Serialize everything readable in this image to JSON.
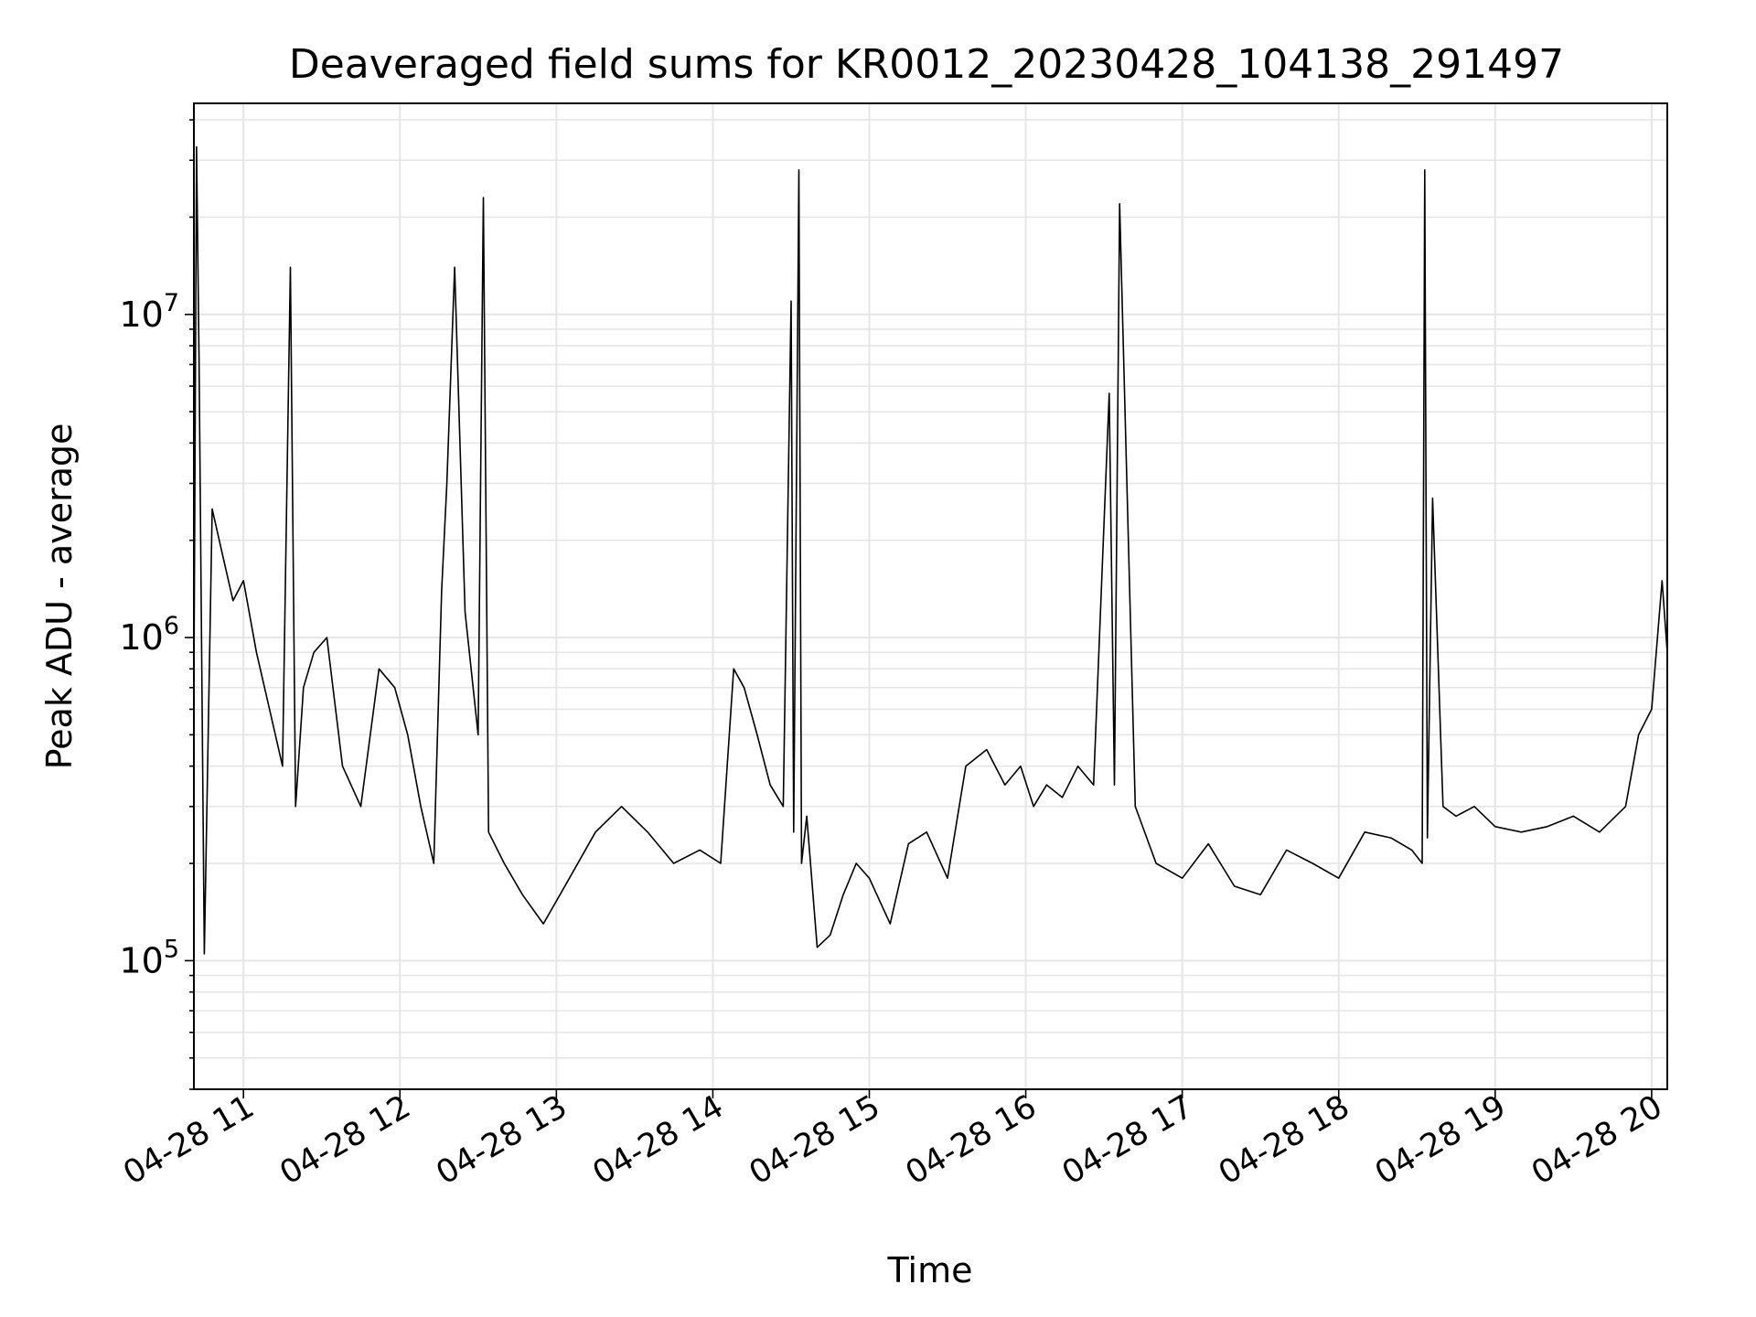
{
  "chart_data": {
    "type": "line",
    "title": "Deaveraged field sums for KR0012_20230428_104138_291497",
    "xlabel": "Time",
    "ylabel": "Peak ADU - average",
    "yscale": "log",
    "ylim": [
      40000,
      45000000
    ],
    "xlim": [
      "2023-04-28 10:41",
      "2023-04-28 20:06"
    ],
    "x_ticks": [
      "04-28 11",
      "04-28 12",
      "04-28 13",
      "04-28 14",
      "04-28 15",
      "04-28 16",
      "04-28 17",
      "04-28 18",
      "04-28 19",
      "04-28 20"
    ],
    "y_ticks": [
      {
        "base": "10",
        "exp": "5",
        "value": 100000
      },
      {
        "base": "10",
        "exp": "6",
        "value": 1000000
      },
      {
        "base": "10",
        "exp": "7",
        "value": 10000000
      }
    ],
    "grid": true,
    "line_color": "#000000",
    "series": [
      {
        "x": [
          "2023-04-28 10:41",
          "2023-04-28 10:42",
          "2023-04-28 10:43",
          "2023-04-28 10:45",
          "2023-04-28 10:48",
          "2023-04-28 10:52",
          "2023-04-28 10:56",
          "2023-04-28 11:00",
          "2023-04-28 11:05",
          "2023-04-28 11:10",
          "2023-04-28 11:15",
          "2023-04-28 11:18",
          "2023-04-28 11:20",
          "2023-04-28 11:23",
          "2023-04-28 11:27",
          "2023-04-28 11:32",
          "2023-04-28 11:38",
          "2023-04-28 11:45",
          "2023-04-28 11:52",
          "2023-04-28 11:58",
          "2023-04-28 12:03",
          "2023-04-28 12:08",
          "2023-04-28 12:13",
          "2023-04-28 12:16",
          "2023-04-28 12:18",
          "2023-04-28 12:21",
          "2023-04-28 12:25",
          "2023-04-28 12:30",
          "2023-04-28 12:32",
          "2023-04-28 12:34",
          "2023-04-28 12:40",
          "2023-04-28 12:47",
          "2023-04-28 12:55",
          "2023-04-28 13:05",
          "2023-04-28 13:15",
          "2023-04-28 13:25",
          "2023-04-28 13:35",
          "2023-04-28 13:45",
          "2023-04-28 13:55",
          "2023-04-28 14:03",
          "2023-04-28 14:08",
          "2023-04-28 14:12",
          "2023-04-28 14:17",
          "2023-04-28 14:22",
          "2023-04-28 14:27",
          "2023-04-28 14:30",
          "2023-04-28 14:31",
          "2023-04-28 14:33",
          "2023-04-28 14:34",
          "2023-04-28 14:36",
          "2023-04-28 14:40",
          "2023-04-28 14:45",
          "2023-04-28 14:50",
          "2023-04-28 14:55",
          "2023-04-28 15:00",
          "2023-04-28 15:08",
          "2023-04-28 15:15",
          "2023-04-28 15:22",
          "2023-04-28 15:30",
          "2023-04-28 15:37",
          "2023-04-28 15:45",
          "2023-04-28 15:52",
          "2023-04-28 15:58",
          "2023-04-28 16:03",
          "2023-04-28 16:08",
          "2023-04-28 16:14",
          "2023-04-28 16:20",
          "2023-04-28 16:26",
          "2023-04-28 16:32",
          "2023-04-28 16:34",
          "2023-04-28 16:36",
          "2023-04-28 16:42",
          "2023-04-28 16:50",
          "2023-04-28 17:00",
          "2023-04-28 17:10",
          "2023-04-28 17:20",
          "2023-04-28 17:30",
          "2023-04-28 17:40",
          "2023-04-28 17:50",
          "2023-04-28 18:00",
          "2023-04-28 18:10",
          "2023-04-28 18:20",
          "2023-04-28 18:28",
          "2023-04-28 18:32",
          "2023-04-28 18:33",
          "2023-04-28 18:34",
          "2023-04-28 18:36",
          "2023-04-28 18:40",
          "2023-04-28 18:45",
          "2023-04-28 18:52",
          "2023-04-28 19:00",
          "2023-04-28 19:10",
          "2023-04-28 19:20",
          "2023-04-28 19:30",
          "2023-04-28 19:40",
          "2023-04-28 19:50",
          "2023-04-28 19:55",
          "2023-04-28 20:00",
          "2023-04-28 20:04",
          "2023-04-28 20:06"
        ],
        "y": [
          700000,
          33000000,
          7000000,
          105000,
          2500000,
          1800000,
          1300000,
          1500000,
          900000,
          600000,
          400000,
          14000000,
          300000,
          700000,
          900000,
          1000000,
          400000,
          300000,
          800000,
          700000,
          500000,
          300000,
          200000,
          1400000,
          3000000,
          14000000,
          1200000,
          500000,
          23000000,
          250000,
          200000,
          160000,
          130000,
          180000,
          250000,
          300000,
          250000,
          200000,
          220000,
          200000,
          800000,
          700000,
          500000,
          350000,
          300000,
          11000000,
          250000,
          28000000,
          200000,
          280000,
          110000,
          120000,
          160000,
          200000,
          180000,
          130000,
          230000,
          250000,
          180000,
          400000,
          450000,
          350000,
          400000,
          300000,
          350000,
          320000,
          400000,
          350000,
          5700000,
          350000,
          22000000,
          300000,
          200000,
          180000,
          230000,
          170000,
          160000,
          220000,
          200000,
          180000,
          250000,
          240000,
          220000,
          200000,
          28000000,
          240000,
          2700000,
          300000,
          280000,
          300000,
          260000,
          250000,
          260000,
          280000,
          250000,
          300000,
          500000,
          600000,
          1500000,
          900000
        ]
      }
    ]
  }
}
